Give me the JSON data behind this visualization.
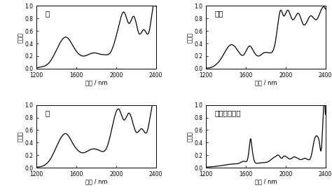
{
  "panels": [
    {
      "label": "綿",
      "xlabel": "波長 / nm",
      "ylabel": "吸光度"
    },
    {
      "label": "羊毛",
      "xlabel": "波長 / nm",
      "ylabel": "吸光度"
    },
    {
      "label": "麻",
      "xlabel": "波長 / nm",
      "ylabel": "吸光度"
    },
    {
      "label": "ポリエステル",
      "xlabel": "波長 / nm",
      "ylabel": "吸光度"
    }
  ],
  "xlim": [
    1200,
    2400
  ],
  "ylim": [
    0.0,
    1.0
  ],
  "yticks": [
    0.0,
    0.2,
    0.4,
    0.6,
    0.8,
    1.0
  ],
  "xticks": [
    1200,
    1600,
    2000,
    2400
  ],
  "background": "#ffffff",
  "linecolor": "#000000",
  "linewidth": 0.9,
  "cotton_x": [
    1200,
    1280,
    1340,
    1420,
    1500,
    1560,
    1620,
    1680,
    1730,
    1780,
    1840,
    1900,
    1940,
    1980,
    2030,
    2080,
    2130,
    2180,
    2230,
    2280,
    2330,
    2370,
    2400
  ],
  "cotton_y": [
    0.01,
    0.04,
    0.12,
    0.36,
    0.5,
    0.38,
    0.24,
    0.2,
    0.23,
    0.25,
    0.23,
    0.22,
    0.25,
    0.4,
    0.7,
    0.9,
    0.72,
    0.83,
    0.56,
    0.62,
    0.58,
    0.97,
    0.99
  ],
  "wool_x": [
    1200,
    1280,
    1360,
    1450,
    1510,
    1580,
    1640,
    1680,
    1730,
    1780,
    1840,
    1900,
    1950,
    1980,
    2020,
    2070,
    2130,
    2180,
    2250,
    2310,
    2370,
    2400
  ],
  "wool_y": [
    0.01,
    0.04,
    0.18,
    0.38,
    0.31,
    0.22,
    0.36,
    0.27,
    0.2,
    0.25,
    0.25,
    0.45,
    0.93,
    0.84,
    0.93,
    0.78,
    0.88,
    0.7,
    0.84,
    0.78,
    0.97,
    0.95
  ],
  "linen_x": [
    1200,
    1280,
    1340,
    1420,
    1500,
    1560,
    1620,
    1680,
    1730,
    1780,
    1840,
    1900,
    1940,
    1980,
    2030,
    2080,
    2130,
    2200,
    2260,
    2310,
    2360,
    2400
  ],
  "linen_y": [
    0.01,
    0.04,
    0.14,
    0.4,
    0.54,
    0.4,
    0.27,
    0.24,
    0.28,
    0.3,
    0.27,
    0.3,
    0.5,
    0.78,
    0.93,
    0.76,
    0.87,
    0.57,
    0.62,
    0.57,
    0.97,
    1.0
  ],
  "poly_x": [
    1200,
    1290,
    1340,
    1380,
    1420,
    1470,
    1530,
    1590,
    1630,
    1650,
    1660,
    1680,
    1710,
    1760,
    1830,
    1870,
    1900,
    1930,
    1960,
    1980,
    2010,
    2050,
    2080,
    2120,
    2160,
    2200,
    2240,
    2260,
    2290,
    2320,
    2340,
    2360,
    2380,
    2400
  ],
  "poly_y": [
    0.01,
    0.02,
    0.03,
    0.04,
    0.05,
    0.06,
    0.07,
    0.1,
    0.25,
    0.46,
    0.35,
    0.14,
    0.07,
    0.08,
    0.1,
    0.15,
    0.18,
    0.2,
    0.15,
    0.18,
    0.17,
    0.14,
    0.17,
    0.15,
    0.13,
    0.15,
    0.13,
    0.2,
    0.45,
    0.5,
    0.4,
    0.3,
    0.9,
    0.85
  ]
}
